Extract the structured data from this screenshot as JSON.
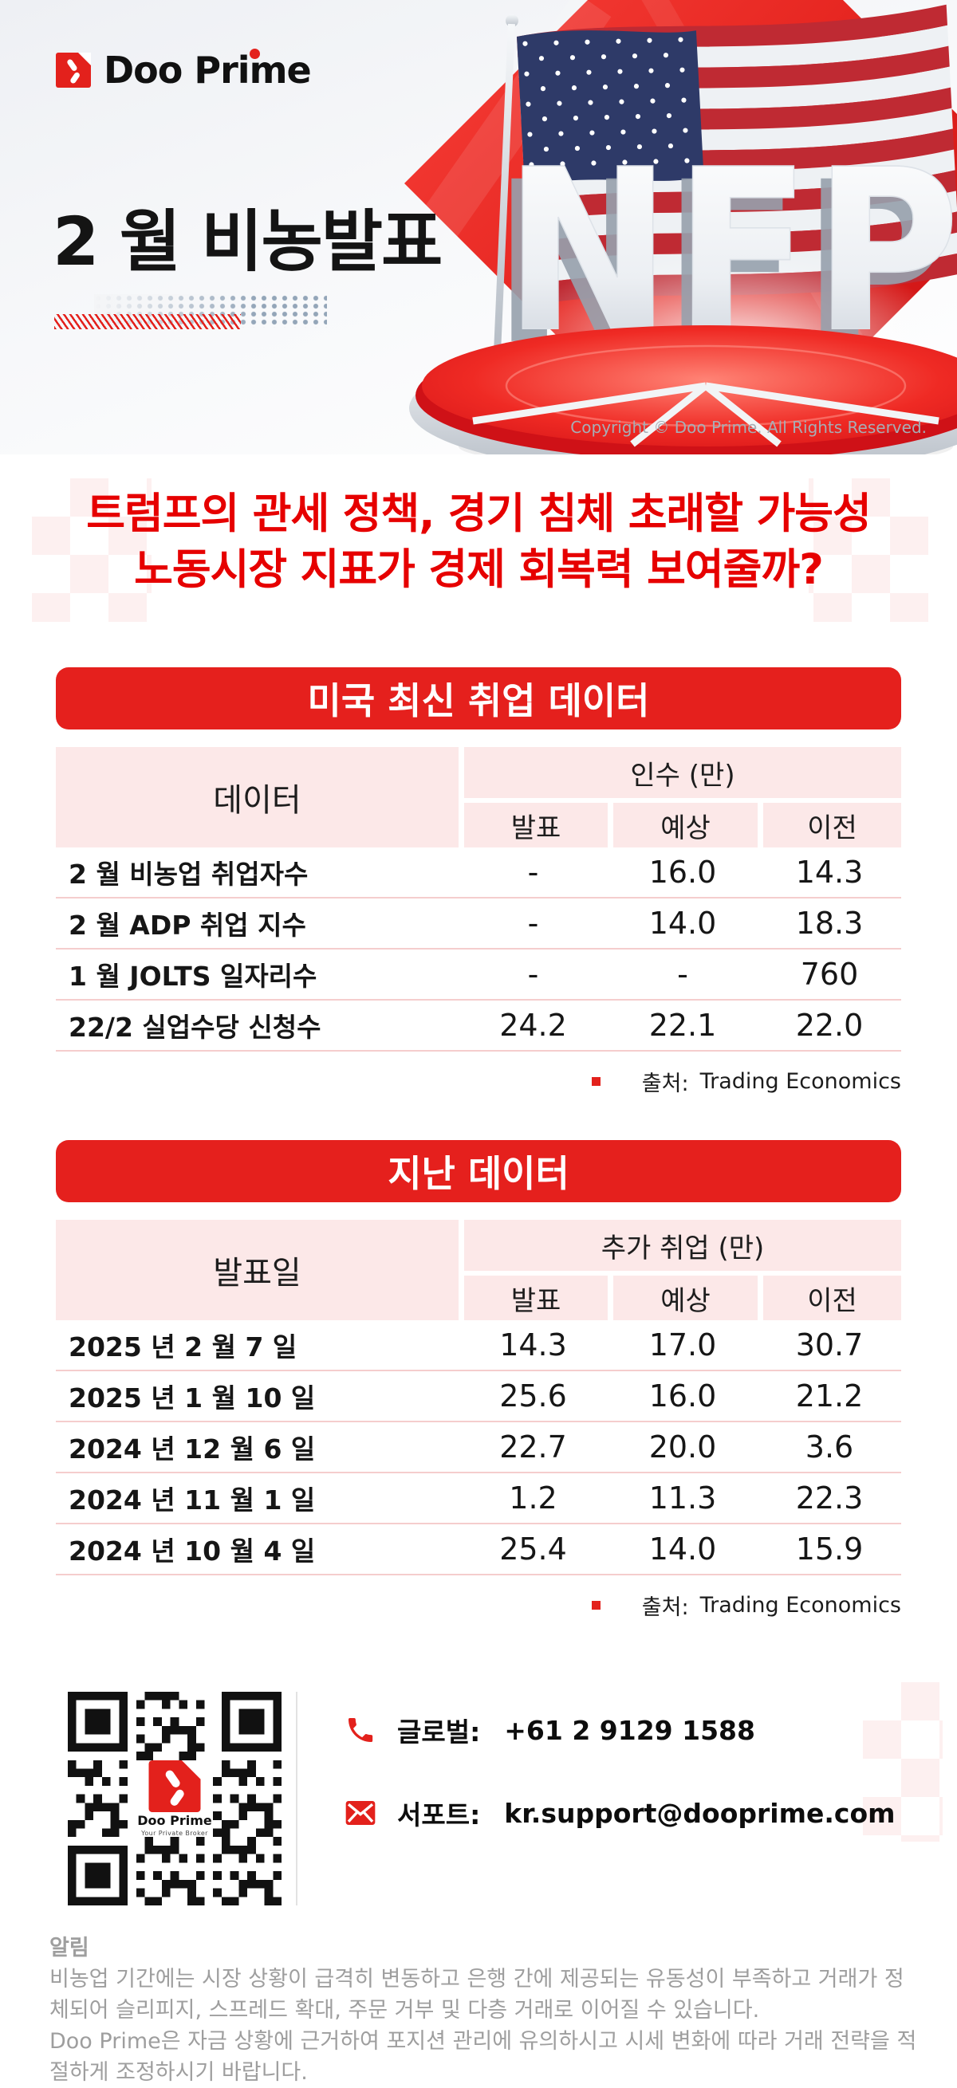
{
  "brand": {
    "name": "Doo Prime",
    "tagline": "Your Private Broker"
  },
  "hero": {
    "title": "2 월 비농발표",
    "nfp_text": "NFP",
    "copyright": "Copyright © Doo Prime. All Rights Reserved."
  },
  "headline": {
    "line1": "트럼프의 관세 정책, 경기 침체 초래할 가능성",
    "line2": "노동시장 지표가 경제 회복력 보여줄까?"
  },
  "tables": [
    {
      "title": "미국 최신 취업 데이터",
      "label_header": "데이터",
      "group_header": "인수 (만)",
      "columns": [
        "발표",
        "예상",
        "이전"
      ],
      "rows": [
        {
          "label": "2 월 비농업 취업자수",
          "values": [
            "-",
            "16.0",
            "14.3"
          ]
        },
        {
          "label": "2 월 ADP 취업 지수",
          "values": [
            "-",
            "14.0",
            "18.3"
          ]
        },
        {
          "label": "1 월 JOLTS 일자리수",
          "values": [
            "-",
            "-",
            "760"
          ]
        },
        {
          "label": "22/2 실업수당 신청수",
          "values": [
            "24.2",
            "22.1",
            "22.0"
          ]
        }
      ],
      "source_label": "출처:",
      "source": "Trading Economics"
    },
    {
      "title": "지난 데이터",
      "label_header": "발표일",
      "group_header": "추가 취업 (만)",
      "columns": [
        "발표",
        "예상",
        "이전"
      ],
      "rows": [
        {
          "label": "2025 년 2 월 7 일",
          "values": [
            "14.3",
            "17.0",
            "30.7"
          ]
        },
        {
          "label": "2025 년 1 월 10 일",
          "values": [
            "25.6",
            "16.0",
            "21.2"
          ]
        },
        {
          "label": "2024 년 12 월 6 일",
          "values": [
            "22.7",
            "20.0",
            "3.6"
          ]
        },
        {
          "label": "2024 년 11 월 1 일",
          "values": [
            "1.2",
            "11.3",
            "22.3"
          ]
        },
        {
          "label": "2024 년 10 월 4 일",
          "values": [
            "25.4",
            "14.0",
            "15.9"
          ]
        }
      ],
      "source_label": "출처:",
      "source": "Trading Economics"
    }
  ],
  "contact": {
    "phone_label": "글로벌:",
    "phone_value": "+61 2 9129 1588",
    "support_label": "서포트:",
    "support_value": "kr.support@dooprime.com"
  },
  "notice": {
    "title": "알림",
    "p1": "비농업 기간에는 시장 상황이 급격히 변동하고 은행 간에 제공되는 유동성이 부족하고 거래가 정체되어 슬리피지, 스프레드 확대, 주문 거부 및 다층 거래로 이어질 수 있습니다.",
    "p2": "Doo Prime은 자금 상황에 근거하여 포지션 관리에 유의하시고 시세 변화에 따라 거래 전략을 적절하게 조정하시기 바랍니다."
  },
  "colors": {
    "accent": "#e3211c",
    "headline_red": "#e60000",
    "cell_pink": "#fce8e8"
  }
}
